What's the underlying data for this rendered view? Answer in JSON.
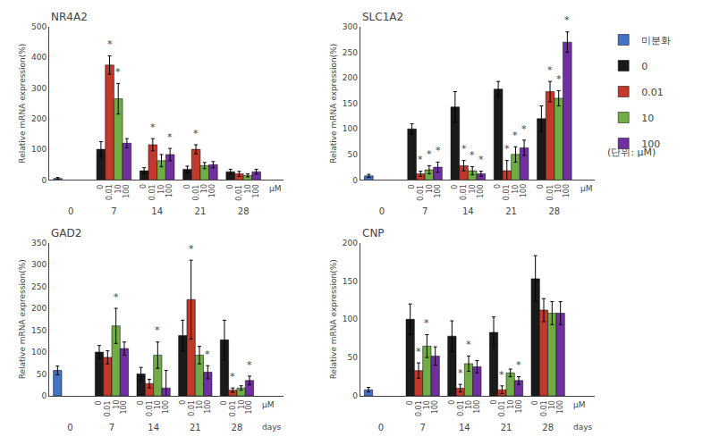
{
  "legend_note": "(단위: μM)",
  "chart_data": [
    {
      "type": "bar",
      "title": "NR4A2",
      "ylabel": "Relative mRNA expression(%)",
      "xlabel": [
        "μM"
      ],
      "categories": [
        "0",
        "7",
        "14",
        "21",
        "28"
      ],
      "ylim": [
        0,
        500
      ],
      "yticks": [
        0,
        100,
        200,
        300,
        400,
        500
      ],
      "grid": false,
      "series": [
        {
          "name": "미분화",
          "color": "#4472C4",
          "values": [
            5,
            null,
            null,
            null,
            null
          ],
          "errors": [
            3,
            null,
            null,
            null,
            null
          ]
        },
        {
          "name": "0",
          "color": "#1a1a1a",
          "values": [
            null,
            100,
            30,
            35,
            27
          ],
          "errors": [
            null,
            25,
            10,
            10,
            8
          ],
          "bar_labels": [
            null,
            "0",
            "0",
            "0",
            "0"
          ]
        },
        {
          "name": "0.01",
          "color": "#C0392B",
          "values": [
            null,
            375,
            115,
            100,
            20
          ],
          "errors": [
            null,
            30,
            20,
            15,
            8
          ],
          "bar_labels": [
            null,
            "0.01",
            "0.01",
            "0.01",
            "0.01"
          ],
          "annotations": [
            null,
            "*",
            "*",
            "*",
            null
          ]
        },
        {
          "name": "10",
          "color": "#70AD47",
          "values": [
            null,
            265,
            63,
            47,
            15
          ],
          "errors": [
            null,
            50,
            20,
            10,
            5
          ],
          "bar_labels": [
            null,
            "10",
            "10",
            "10",
            "10"
          ],
          "annotations": [
            null,
            "*",
            null,
            null,
            null
          ]
        },
        {
          "name": "100",
          "color": "#7030A0",
          "values": [
            null,
            120,
            83,
            50,
            27
          ],
          "errors": [
            null,
            15,
            20,
            10,
            8
          ],
          "bar_labels": [
            null,
            "100",
            "100",
            "100",
            "100"
          ],
          "annotations": [
            null,
            null,
            "*",
            null,
            null
          ]
        }
      ]
    },
    {
      "type": "bar",
      "title": "SLC1A2",
      "ylabel": "Relative mRNA expression(%)",
      "xlabel": [
        "μM"
      ],
      "categories": [
        "0",
        "7",
        "14",
        "21",
        "28"
      ],
      "ylim": [
        0,
        300
      ],
      "yticks": [
        0,
        50,
        100,
        150,
        200,
        250,
        300
      ],
      "grid": false,
      "series": [
        {
          "name": "미분화",
          "color": "#4472C4",
          "values": [
            8,
            null,
            null,
            null,
            null
          ],
          "errors": [
            3,
            null,
            null,
            null,
            null
          ]
        },
        {
          "name": "0",
          "color": "#1a1a1a",
          "values": [
            null,
            100,
            143,
            178,
            120
          ],
          "errors": [
            null,
            10,
            30,
            15,
            25
          ],
          "bar_labels": [
            null,
            "0",
            "0",
            "0",
            "0"
          ]
        },
        {
          "name": "0.01",
          "color": "#C0392B",
          "values": [
            null,
            12,
            28,
            18,
            173
          ],
          "errors": [
            null,
            5,
            10,
            20,
            20
          ],
          "bar_labels": [
            null,
            "0.01",
            "0.01",
            "0.01",
            "0.01"
          ],
          "annotations": [
            null,
            "*",
            "*",
            "*",
            "*"
          ]
        },
        {
          "name": "10",
          "color": "#70AD47",
          "values": [
            null,
            20,
            18,
            50,
            160
          ],
          "errors": [
            null,
            8,
            8,
            15,
            15
          ],
          "bar_labels": [
            null,
            "10",
            "10",
            "10",
            "10"
          ],
          "annotations": [
            null,
            "*",
            "*",
            "*",
            "*"
          ]
        },
        {
          "name": "100",
          "color": "#7030A0",
          "values": [
            null,
            25,
            12,
            63,
            270
          ],
          "errors": [
            null,
            10,
            5,
            15,
            20
          ],
          "bar_labels": [
            null,
            "100",
            "100",
            "100",
            "100"
          ],
          "annotations": [
            null,
            "*",
            "*",
            "*",
            "*"
          ]
        }
      ]
    },
    {
      "type": "bar",
      "title": "GAD2",
      "ylabel": "Relative mRNA expression(%)",
      "xlabel": [
        "μM",
        "days"
      ],
      "categories": [
        "0",
        "7",
        "14",
        "21",
        "28"
      ],
      "ylim": [
        0,
        350
      ],
      "yticks": [
        0,
        50,
        100,
        150,
        200,
        250,
        300,
        350
      ],
      "grid": false,
      "series": [
        {
          "name": "미분화",
          "color": "#4472C4",
          "values": [
            58,
            null,
            null,
            null,
            null
          ],
          "errors": [
            10,
            null,
            null,
            null,
            null
          ]
        },
        {
          "name": "0",
          "color": "#1a1a1a",
          "values": [
            null,
            100,
            50,
            138,
            128
          ],
          "errors": [
            null,
            15,
            15,
            35,
            45
          ],
          "bar_labels": [
            null,
            "0",
            "0",
            "0",
            "0"
          ]
        },
        {
          "name": "0.01",
          "color": "#C0392B",
          "values": [
            null,
            88,
            28,
            220,
            13
          ],
          "errors": [
            null,
            15,
            10,
            90,
            5
          ],
          "bar_labels": [
            null,
            "0.01",
            "0.01",
            "0.01",
            "0.01"
          ],
          "annotations": [
            null,
            null,
            null,
            "*",
            "*"
          ]
        },
        {
          "name": "10",
          "color": "#70AD47",
          "values": [
            null,
            160,
            93,
            93,
            18
          ],
          "errors": [
            null,
            40,
            30,
            20,
            5
          ],
          "bar_labels": [
            null,
            "10",
            "10",
            "10",
            "10"
          ],
          "annotations": [
            null,
            "*",
            "*",
            null,
            null
          ]
        },
        {
          "name": "100",
          "color": "#7030A0",
          "values": [
            null,
            108,
            18,
            54,
            35
          ],
          "errors": [
            null,
            15,
            40,
            15,
            10
          ],
          "bar_labels": [
            null,
            "100",
            "100",
            "100",
            "100"
          ],
          "annotations": [
            null,
            null,
            null,
            "*",
            "*"
          ]
        }
      ]
    },
    {
      "type": "bar",
      "title": "CNP",
      "ylabel": "Relative mRNA expression(%)",
      "xlabel": [
        "μM",
        "days"
      ],
      "categories": [
        "0",
        "7",
        "14",
        "21",
        "28"
      ],
      "ylim": [
        0,
        200
      ],
      "yticks": [
        0,
        50,
        100,
        150,
        200
      ],
      "grid": false,
      "series": [
        {
          "name": "미분화",
          "color": "#4472C4",
          "values": [
            8,
            null,
            null,
            null,
            null
          ],
          "errors": [
            3,
            null,
            null,
            null,
            null
          ]
        },
        {
          "name": "0",
          "color": "#1a1a1a",
          "values": [
            null,
            100,
            78,
            83,
            153
          ],
          "errors": [
            null,
            20,
            20,
            20,
            30
          ],
          "bar_labels": [
            null,
            "0",
            "0",
            "0",
            "0"
          ]
        },
        {
          "name": "0.01",
          "color": "#C0392B",
          "values": [
            null,
            33,
            10,
            8,
            112
          ],
          "errors": [
            null,
            10,
            5,
            5,
            15
          ],
          "bar_labels": [
            null,
            "0.01",
            "0.01",
            "0.01",
            "0.01"
          ],
          "annotations": [
            null,
            "*",
            "*",
            "*",
            null
          ]
        },
        {
          "name": "10",
          "color": "#70AD47",
          "values": [
            null,
            65,
            42,
            30,
            108
          ],
          "errors": [
            null,
            15,
            10,
            5,
            15
          ],
          "bar_labels": [
            null,
            "10",
            "10",
            "10",
            "10"
          ],
          "annotations": [
            null,
            "*",
            "*",
            null,
            null
          ]
        },
        {
          "name": "100",
          "color": "#7030A0",
          "values": [
            null,
            52,
            38,
            20,
            108
          ],
          "errors": [
            null,
            12,
            8,
            5,
            15
          ],
          "bar_labels": [
            null,
            "100",
            "100",
            "100",
            "100"
          ],
          "annotations": [
            null,
            null,
            null,
            "*",
            null
          ]
        }
      ]
    }
  ]
}
